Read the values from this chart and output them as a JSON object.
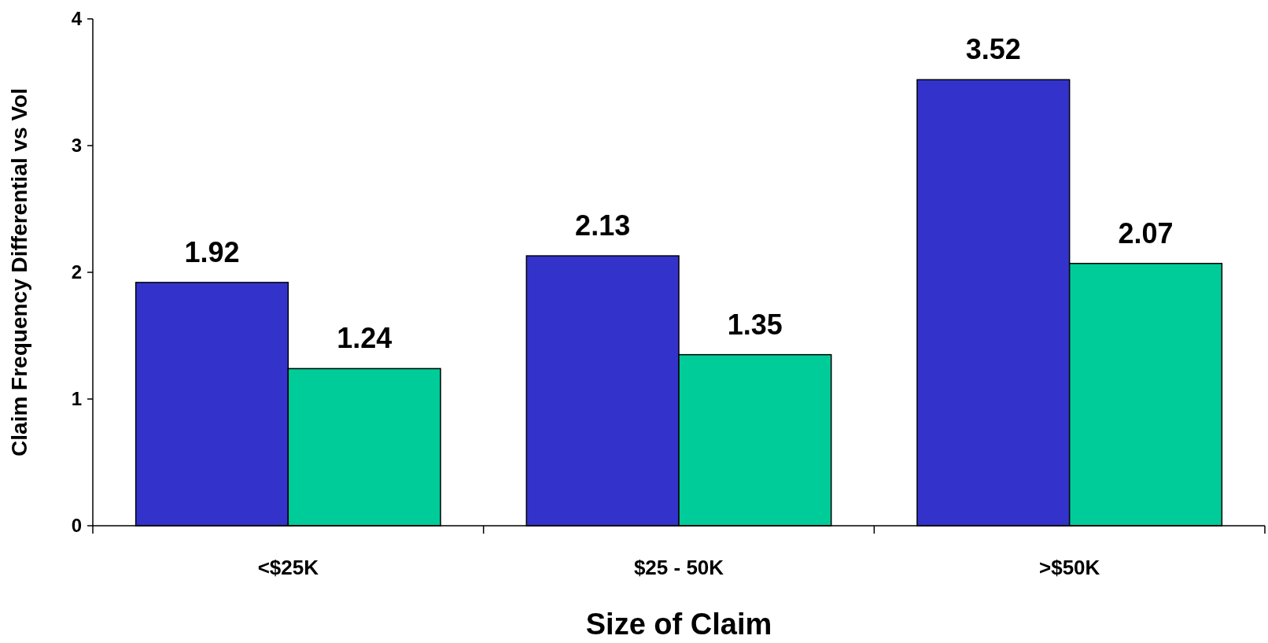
{
  "chart_data": {
    "type": "bar",
    "xlabel": "Size of Claim",
    "ylabel": "Claim Frequency Differential vs Vol",
    "categories": [
      "<$25K",
      "$25 - 50K",
      ">$50K"
    ],
    "series": [
      {
        "color": "#3333cc",
        "values": [
          1.92,
          2.13,
          3.52
        ]
      },
      {
        "color": "#00cc99",
        "values": [
          1.24,
          1.35,
          2.07
        ]
      }
    ],
    "ylim": [
      0,
      4
    ],
    "yticks": [
      0,
      1,
      2,
      3,
      4
    ],
    "data_labels": true
  }
}
